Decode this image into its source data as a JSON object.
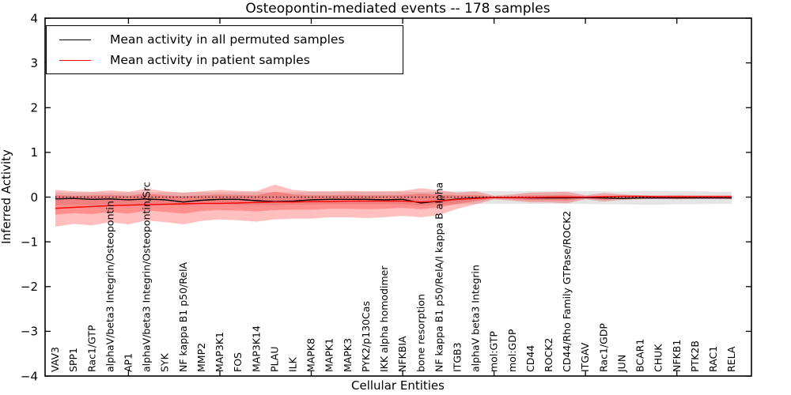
{
  "title": "Osteopontin-mediated events -- 178 samples",
  "legend": {
    "items": [
      {
        "label": "Mean activity in all permuted samples",
        "color": "#000000"
      },
      {
        "label": "Mean activity in patient samples",
        "color": "#ff0000"
      }
    ]
  },
  "colors": {
    "permuted_line": "#000000",
    "patient_line": "#ff0000",
    "patient_band": "rgba(255,0,0,0.25)",
    "permuted_band": "rgba(0,0,0,0.10)",
    "frame": "#000000"
  },
  "chart_data": {
    "type": "line",
    "title": "Osteopontin-mediated events -- 178 samples",
    "xlabel": "Cellular Entities",
    "ylabel": "Inferred Activity",
    "ylim": [
      -4,
      4
    ],
    "yticks": [
      4,
      3,
      2,
      1,
      0,
      -1,
      -2,
      -3,
      -4
    ],
    "grid": false,
    "legend_position": "upper left",
    "zero_line": "dotted",
    "categories": [
      "VAV3",
      "SPP1",
      "Rac1/GTP",
      "alphaV/beta3 Integrin/Osteopontin",
      "AP1",
      "alphaV/beta3 Integrin/Osteopontin/Src",
      "SYK",
      "NF kappa B1 p50/RelA",
      "MMP2",
      "MAP3K1",
      "FOS",
      "MAP3K14",
      "PLAU",
      "ILK",
      "MAPK8",
      "MAPK1",
      "MAPK3",
      "PYK2/p130Cas",
      "IKK alpha homodimer",
      "NFKBIA",
      "bone resorption",
      "NF kappa B1 p50/RelA/I kappa B alpha",
      "ITGB3",
      "alphaV beta3 Integrin",
      "mol:GTP",
      "mol:GDP",
      "CD44",
      "ROCK2",
      "CD44/Rho Family GTPase/ROCK2",
      "ITGAV",
      "Rac1/GDP",
      "JUN",
      "BCAR1",
      "CHUK",
      "NFKB1",
      "PTK2B",
      "RAC1",
      "RELA"
    ],
    "series": [
      {
        "name": "Mean activity in all permuted samples",
        "color": "#000000",
        "values": [
          -0.04,
          -0.03,
          -0.05,
          -0.04,
          -0.06,
          -0.04,
          -0.06,
          -0.11,
          -0.07,
          -0.05,
          -0.05,
          -0.08,
          -0.1,
          -0.09,
          -0.06,
          -0.05,
          -0.05,
          -0.05,
          -0.06,
          -0.05,
          -0.13,
          -0.09,
          -0.04,
          -0.02,
          -0.01,
          -0.01,
          -0.02,
          -0.02,
          -0.02,
          -0.01,
          -0.02,
          -0.03,
          -0.02,
          -0.02,
          -0.02,
          -0.02,
          -0.02,
          -0.02
        ]
      },
      {
        "name": "Mean activity in patient samples",
        "color": "#ff0000",
        "values": [
          -0.25,
          -0.23,
          -0.21,
          -0.19,
          -0.18,
          -0.17,
          -0.16,
          -0.15,
          -0.14,
          -0.14,
          -0.13,
          -0.12,
          -0.11,
          -0.11,
          -0.1,
          -0.1,
          -0.09,
          -0.09,
          -0.09,
          -0.09,
          -0.11,
          -0.09,
          -0.05,
          -0.03,
          -0.01,
          -0.01,
          -0.01,
          0.0,
          0.0,
          0.0,
          0.01,
          0.02,
          0.02,
          0.01,
          0.01,
          0.01,
          0.01,
          0.01
        ]
      }
    ],
    "bands": [
      {
        "name": "permuted-range",
        "color": "rgba(0,0,0,0.10)",
        "upper": [
          0.1,
          0.1,
          0.11,
          0.1,
          0.11,
          0.1,
          0.11,
          0.1,
          0.11,
          0.11,
          0.11,
          0.11,
          0.11,
          0.11,
          0.12,
          0.12,
          0.12,
          0.12,
          0.12,
          0.12,
          0.11,
          0.12,
          0.13,
          0.13,
          0.13,
          0.13,
          0.13,
          0.13,
          0.13,
          0.13,
          0.13,
          0.12,
          0.14,
          0.14,
          0.13,
          0.13,
          0.12,
          0.12
        ],
        "lower": [
          -0.18,
          -0.17,
          -0.18,
          -0.17,
          -0.18,
          -0.17,
          -0.18,
          -0.19,
          -0.17,
          -0.17,
          -0.17,
          -0.18,
          -0.18,
          -0.17,
          -0.17,
          -0.16,
          -0.16,
          -0.16,
          -0.16,
          -0.16,
          -0.19,
          -0.17,
          -0.16,
          -0.15,
          -0.15,
          -0.15,
          -0.15,
          -0.15,
          -0.15,
          -0.15,
          -0.16,
          -0.16,
          -0.17,
          -0.17,
          -0.16,
          -0.16,
          -0.15,
          -0.15
        ]
      },
      {
        "name": "patient-range-outer",
        "color": "rgba(255,0,0,0.25)",
        "upper": [
          0.16,
          0.13,
          0.12,
          0.15,
          0.12,
          0.19,
          0.13,
          0.1,
          0.13,
          0.16,
          0.14,
          0.13,
          0.28,
          0.16,
          0.13,
          0.13,
          0.14,
          0.13,
          0.13,
          0.14,
          0.2,
          0.15,
          0.1,
          0.13,
          0.03,
          0.06,
          0.1,
          0.11,
          0.12,
          0.04,
          0.09,
          0.06,
          0.04,
          0.04,
          0.05,
          0.04,
          0.04,
          0.04
        ],
        "lower": [
          -0.66,
          -0.6,
          -0.63,
          -0.56,
          -0.61,
          -0.52,
          -0.56,
          -0.61,
          -0.53,
          -0.5,
          -0.52,
          -0.55,
          -0.5,
          -0.48,
          -0.48,
          -0.45,
          -0.45,
          -0.47,
          -0.45,
          -0.42,
          -0.45,
          -0.4,
          -0.26,
          -0.16,
          -0.05,
          -0.08,
          -0.12,
          -0.12,
          -0.14,
          -0.05,
          -0.1,
          -0.06,
          -0.05,
          -0.04,
          -0.05,
          -0.04,
          -0.04,
          -0.05
        ]
      },
      {
        "name": "patient-range-inner",
        "color": "rgba(255,0,0,0.25)",
        "upper": [
          0.05,
          0.03,
          0.04,
          0.05,
          0.03,
          0.08,
          0.04,
          0.02,
          0.04,
          0.06,
          0.05,
          0.04,
          0.12,
          0.06,
          0.04,
          0.04,
          0.05,
          0.04,
          0.04,
          0.05,
          0.08,
          0.06,
          0.04,
          0.05,
          0.01,
          0.02,
          0.04,
          0.04,
          0.05,
          0.01,
          0.03,
          0.02,
          0.02,
          0.01,
          0.02,
          0.01,
          0.01,
          0.02
        ],
        "lower": [
          -0.39,
          -0.36,
          -0.38,
          -0.33,
          -0.37,
          -0.3,
          -0.33,
          -0.37,
          -0.31,
          -0.29,
          -0.3,
          -0.32,
          -0.29,
          -0.28,
          -0.28,
          -0.26,
          -0.26,
          -0.27,
          -0.26,
          -0.24,
          -0.27,
          -0.23,
          -0.15,
          -0.09,
          -0.03,
          -0.05,
          -0.07,
          -0.07,
          -0.08,
          -0.03,
          -0.06,
          -0.03,
          -0.03,
          -0.02,
          -0.03,
          -0.02,
          -0.02,
          -0.03
        ]
      }
    ]
  }
}
